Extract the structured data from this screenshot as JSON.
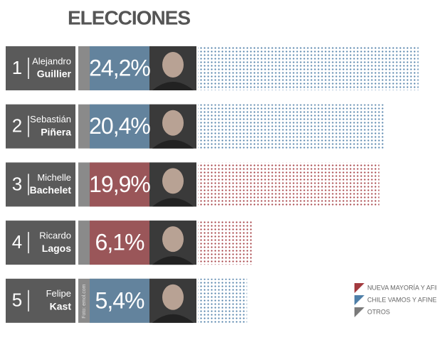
{
  "chart_data": {
    "type": "bar",
    "title": "ELECCIONES",
    "ranks": [
      "1",
      "2",
      "3",
      "4",
      "5"
    ],
    "first_names": [
      "Alejandro",
      "Sebastián",
      "Michelle",
      "Ricardo",
      "Felipe"
    ],
    "categories": [
      "Guillier",
      "Piñera",
      "Bachelet",
      "Lagos",
      "Kast"
    ],
    "values": [
      24.2,
      20.4,
      19.9,
      6.1,
      5.4
    ],
    "value_labels": [
      "24,2%",
      "20,4%",
      "19,9%",
      "6,1%",
      "5,4%"
    ],
    "colors": [
      "#4f7fa8",
      "#4f7fa8",
      "#a33a3f",
      "#a33a3f",
      "#4f7fa8"
    ],
    "photo_credit": "Foto: emol.com",
    "legend": [
      {
        "name": "NUEVA MAYORÍA Y AFINES",
        "color": "#a33a3f"
      },
      {
        "name": "CHILE VAMOS Y AFINES",
        "color": "#4f7fa8"
      },
      {
        "name": "OTROS",
        "color": "#7a7a7a"
      }
    ]
  }
}
